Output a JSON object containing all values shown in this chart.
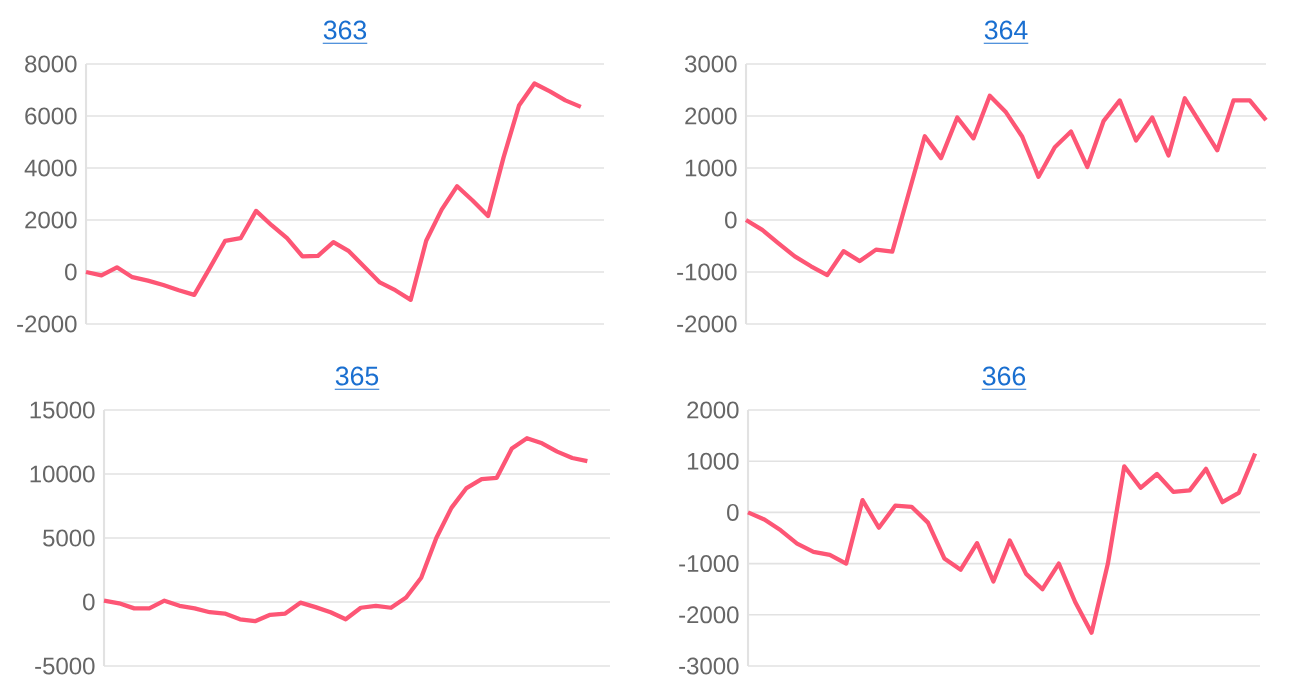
{
  "chart_data": [
    {
      "type": "line",
      "title": "363",
      "color": "#fd5675",
      "grid": "y",
      "ylim": [
        -2000,
        8000
      ],
      "yticks": [
        -2000,
        0,
        2000,
        4000,
        6000,
        8000
      ],
      "categories": [
        null,
        null,
        null,
        null,
        null,
        null,
        null,
        null,
        null,
        null,
        null,
        null,
        null,
        null,
        null,
        null,
        null,
        null,
        null,
        null,
        null,
        null,
        null,
        null,
        null,
        null,
        null,
        null,
        null,
        null,
        null,
        null,
        null
      ],
      "values": [
        0,
        -130,
        180,
        -200,
        -330,
        -500,
        -700,
        -880,
        150,
        1200,
        1300,
        2350,
        1800,
        1300,
        600,
        620,
        1150,
        800,
        200,
        -400,
        -700,
        -1070,
        1200,
        2400,
        3300,
        2750,
        2150,
        4400,
        6400,
        7250,
        6950,
        6600,
        6350
      ]
    },
    {
      "type": "line",
      "title": "364",
      "color": "#fd5675",
      "grid": "y",
      "ylim": [
        -2000,
        3000
      ],
      "yticks": [
        -2000,
        -1000,
        0,
        1000,
        2000,
        3000
      ],
      "categories": [
        null,
        null,
        null,
        null,
        null,
        null,
        null,
        null,
        null,
        null,
        null,
        null,
        null,
        null,
        null,
        null,
        null,
        null,
        null,
        null,
        null,
        null,
        null,
        null,
        null,
        null,
        null,
        null,
        null,
        null,
        null,
        null,
        null
      ],
      "values": [
        0,
        -190,
        -450,
        -700,
        -890,
        -1060,
        -600,
        -790,
        -570,
        -610,
        500,
        1610,
        1190,
        1970,
        1570,
        2390,
        2070,
        1600,
        830,
        1400,
        1700,
        1020,
        1900,
        2300,
        1530,
        1970,
        1240,
        2340,
        1840,
        1340,
        2300,
        2300,
        1920
      ]
    },
    {
      "type": "line",
      "title": "365",
      "color": "#fd5675",
      "grid": "y",
      "ylim": [
        -5000,
        15000
      ],
      "yticks": [
        -5000,
        0,
        5000,
        10000,
        15000
      ],
      "categories": [
        null,
        null,
        null,
        null,
        null,
        null,
        null,
        null,
        null,
        null,
        null,
        null,
        null,
        null,
        null,
        null,
        null,
        null,
        null,
        null,
        null,
        null,
        null,
        null,
        null,
        null,
        null,
        null,
        null,
        null,
        null,
        null,
        null
      ],
      "values": [
        100,
        -100,
        -500,
        -500,
        100,
        -300,
        -500,
        -800,
        -900,
        -1350,
        -1500,
        -1000,
        -900,
        -50,
        -400,
        -800,
        -1350,
        -450,
        -300,
        -450,
        350,
        1900,
        5000,
        7350,
        8900,
        9600,
        9700,
        12000,
        12800,
        12400,
        11750,
        11250,
        11000
      ]
    },
    {
      "type": "line",
      "title": "366",
      "color": "#fd5675",
      "grid": "y",
      "ylim": [
        -3000,
        2000
      ],
      "yticks": [
        -3000,
        -2000,
        -1000,
        0,
        1000,
        2000
      ],
      "categories": [
        null,
        null,
        null,
        null,
        null,
        null,
        null,
        null,
        null,
        null,
        null,
        null,
        null,
        null,
        null,
        null,
        null,
        null,
        null,
        null,
        null,
        null,
        null,
        null,
        null,
        null,
        null,
        null,
        null,
        null,
        null,
        null
      ],
      "values": [
        0,
        -140,
        -350,
        -610,
        -770,
        -830,
        -1000,
        240,
        -300,
        130,
        110,
        -200,
        -900,
        -1120,
        -600,
        -1350,
        -550,
        -1200,
        -1500,
        -1000,
        -1750,
        -2350,
        -1000,
        900,
        480,
        750,
        400,
        430,
        850,
        200,
        380,
        1150
      ]
    }
  ]
}
